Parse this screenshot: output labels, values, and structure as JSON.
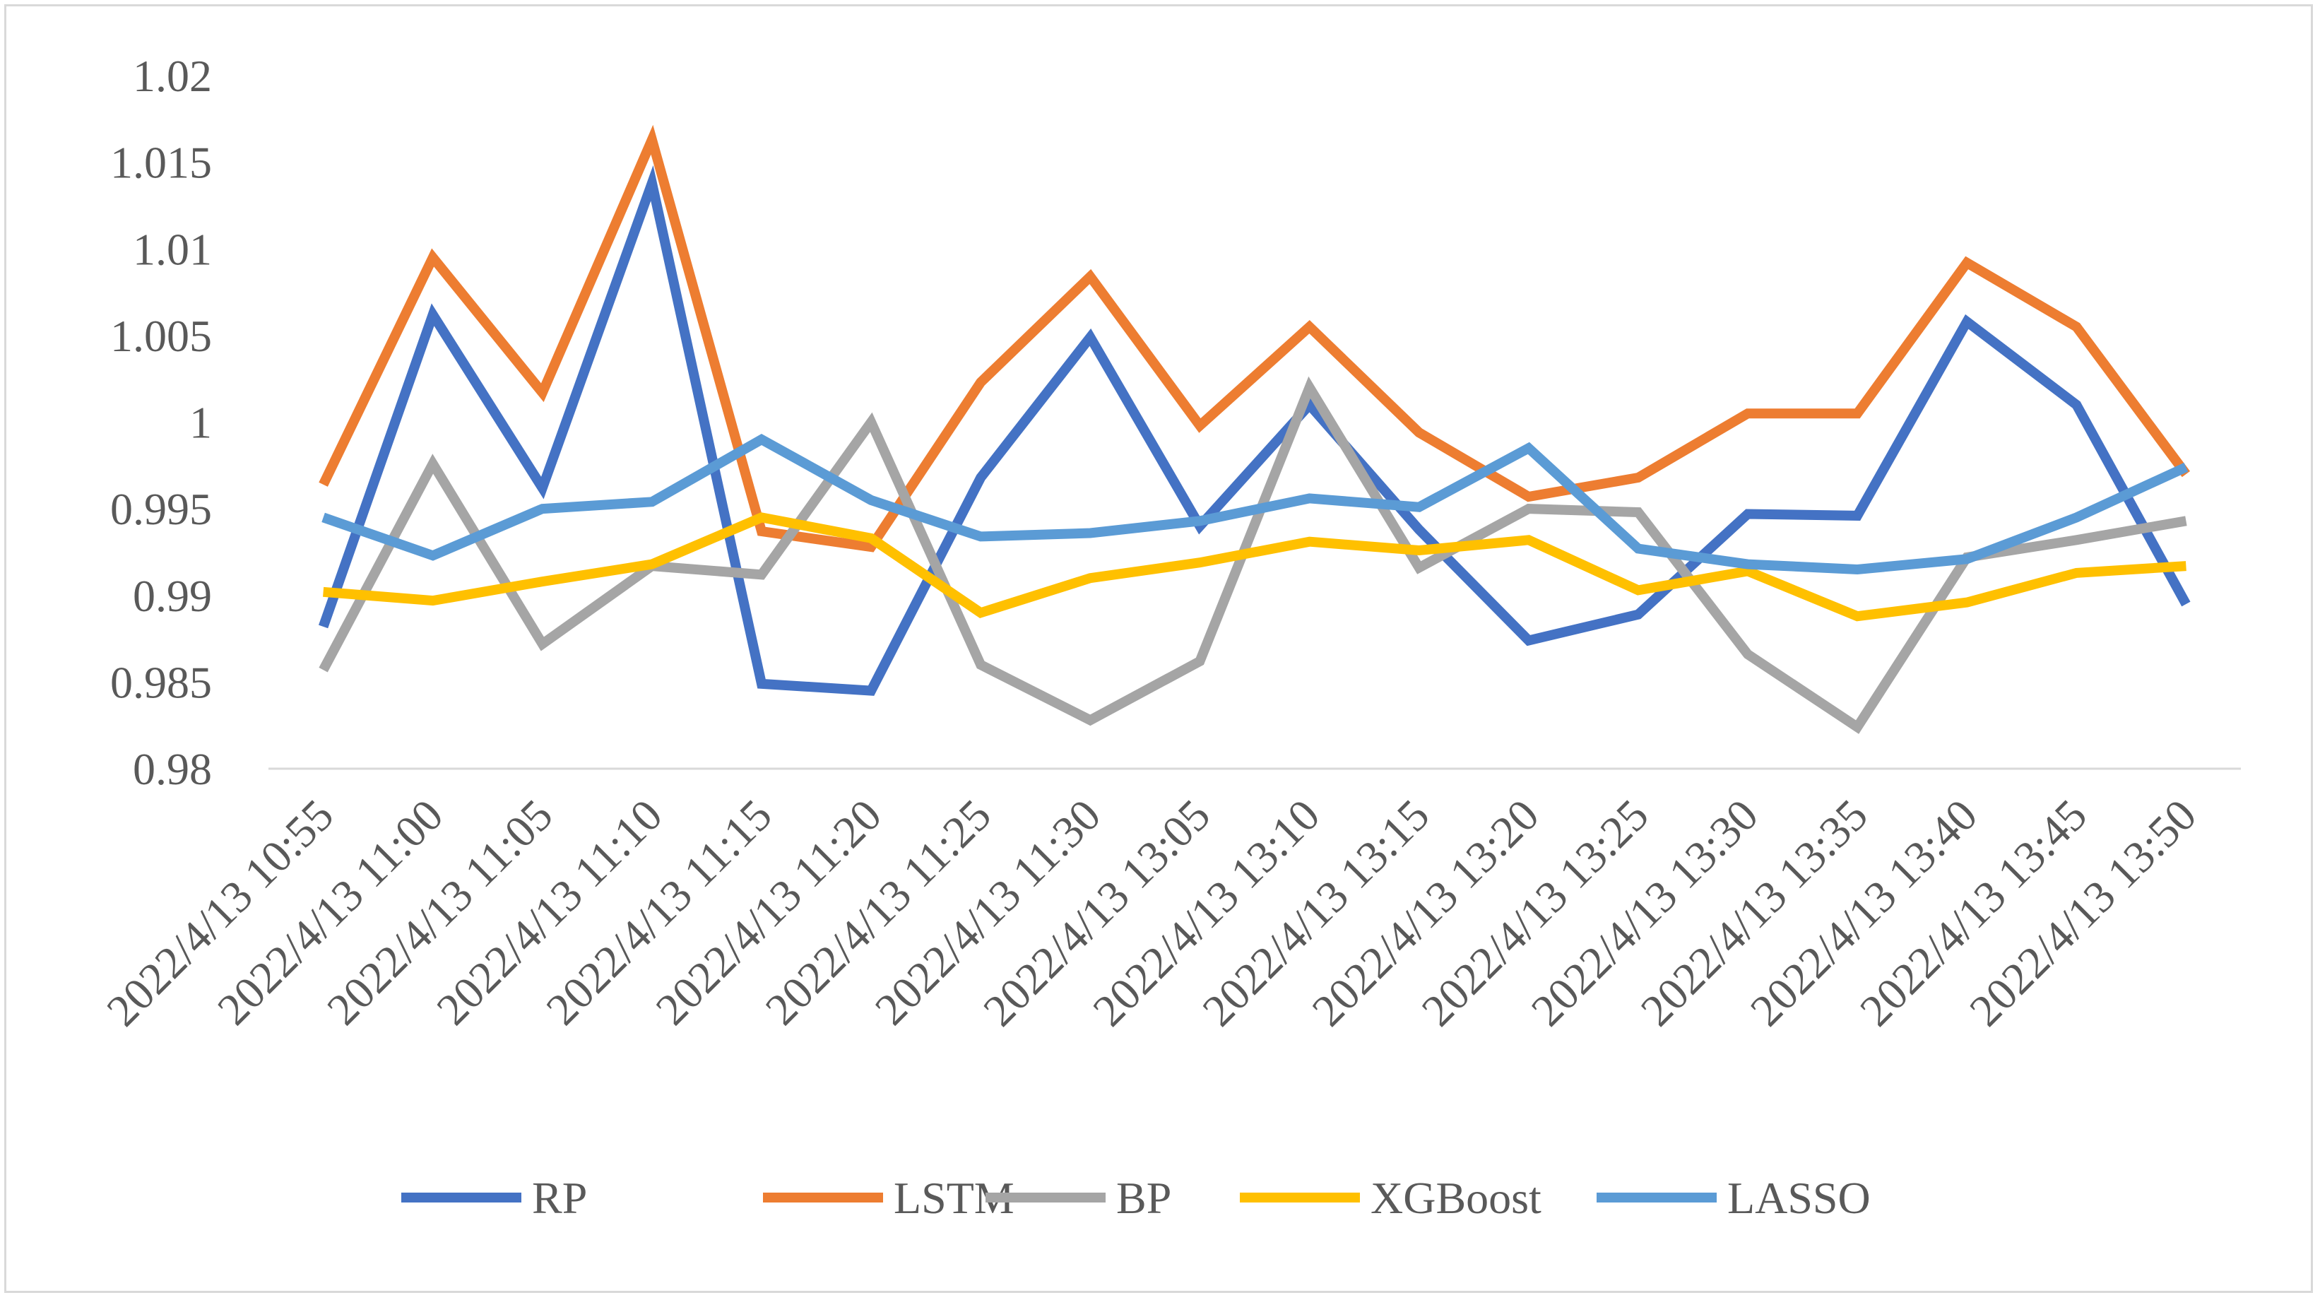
{
  "chart_data": {
    "type": "line",
    "title": "",
    "xlabel": "",
    "ylabel": "",
    "ylim": [
      0.98,
      1.02
    ],
    "ytick_step": 0.005,
    "ytick_labels": [
      "0.98",
      "0.985",
      "0.99",
      "0.995",
      "1",
      "1.005",
      "1.01",
      "1.015",
      "1.02"
    ],
    "grid": false,
    "legend_position": "bottom",
    "categories": [
      "2022/4/13 10:55",
      "2022/4/13 11:00",
      "2022/4/13 11:05",
      "2022/4/13 11:10",
      "2022/4/13 11:15",
      "2022/4/13 11:20",
      "2022/4/13 11:25",
      "2022/4/13 11:30",
      "2022/4/13 13:05",
      "2022/4/13 13:10",
      "2022/4/13 13:15",
      "2022/4/13 13:20",
      "2022/4/13 13:25",
      "2022/4/13 13:30",
      "2022/4/13 13:35",
      "2022/4/13 13:40",
      "2022/4/13 13:45",
      "2022/4/13 13:50"
    ],
    "series": [
      {
        "name": "RP",
        "color": "#4472c4",
        "values": [
          0.9882,
          1.0062,
          0.9962,
          1.0138,
          0.9849,
          0.9845,
          0.9968,
          1.0049,
          0.994,
          1.001,
          0.9938,
          0.9874,
          0.9889,
          0.9947,
          0.9946,
          1.0058,
          1.001,
          0.9895
        ]
      },
      {
        "name": "LSTM",
        "color": "#ed7d31",
        "values": [
          0.9964,
          1.0095,
          1.0017,
          1.0163,
          0.9937,
          0.9928,
          1.0023,
          1.0084,
          0.9998,
          1.0055,
          0.9994,
          0.9957,
          0.9968,
          1.0005,
          1.0005,
          1.0092,
          1.0055,
          0.997
        ]
      },
      {
        "name": "BP",
        "color": "#a5a5a5",
        "values": [
          0.9857,
          0.9976,
          0.9872,
          0.9917,
          0.9912,
          1.0,
          0.986,
          0.9828,
          0.9862,
          1.002,
          0.9916,
          0.995,
          0.9948,
          0.9866,
          0.9824,
          0.9922,
          0.9932,
          0.9943
        ]
      },
      {
        "name": "XGBoost",
        "color": "#ffc000",
        "values": [
          0.9902,
          0.9897,
          0.9908,
          0.9918,
          0.9945,
          0.9933,
          0.989,
          0.991,
          0.9919,
          0.9931,
          0.9926,
          0.9932,
          0.9903,
          0.9914,
          0.9888,
          0.9896,
          0.9913,
          0.9917
        ]
      },
      {
        "name": "LASSO",
        "color": "#5b9bd5",
        "values": [
          0.9945,
          0.9923,
          0.995,
          0.9954,
          0.999,
          0.9955,
          0.9934,
          0.9936,
          0.9943,
          0.9956,
          0.9951,
          0.9985,
          0.9927,
          0.9918,
          0.9915,
          0.9921,
          0.9945,
          0.9974
        ]
      }
    ]
  }
}
